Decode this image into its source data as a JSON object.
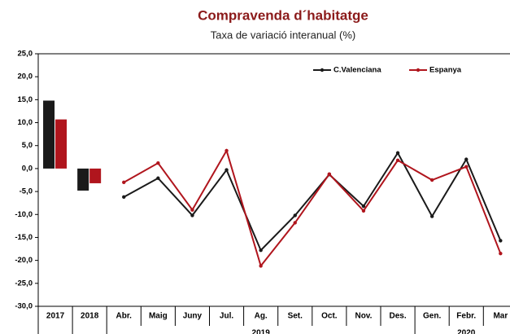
{
  "chart_data": {
    "type": "bar_line",
    "title": "Compravenda d´habitatge",
    "subtitle": "Taxa de variació interanual (%)",
    "bar_categories": [
      "2017",
      "2018"
    ],
    "category_groups": [
      {
        "label": "2019",
        "categories": [
          "Abr.",
          "Maig",
          "Juny",
          "Jul.",
          "Ag.",
          "Set.",
          "Oct.",
          "Nov.",
          "Des."
        ]
      },
      {
        "label": "2020",
        "categories": [
          "Gen.",
          "Febr.",
          "Mar"
        ]
      }
    ],
    "series": [
      {
        "name": "C.Valenciana",
        "color": "#1a1a1a",
        "bar_values": [
          14.8,
          -4.8
        ],
        "values": [
          -6.2,
          -2.1,
          -10.2,
          -0.3,
          -17.8,
          -10.2,
          -1.3,
          -8.2,
          3.4,
          -10.4,
          2.0,
          -15.7
        ]
      },
      {
        "name": "Espanya",
        "color": "#b0151d",
        "bar_values": [
          10.7,
          -3.2
        ],
        "values": [
          -3.0,
          1.2,
          -9.0,
          3.9,
          -21.2,
          -11.8,
          -1.2,
          -9.2,
          1.8,
          -2.5,
          0.4,
          -18.5
        ]
      }
    ],
    "ylim": [
      -30,
      25
    ],
    "yticks": [
      {
        "value": -30,
        "label": "-30,0"
      },
      {
        "value": -25,
        "label": "-25,0"
      },
      {
        "value": -20,
        "label": "-20,0"
      },
      {
        "value": -15,
        "label": "-15,0"
      },
      {
        "value": -10,
        "label": "-10,0"
      },
      {
        "value": -5,
        "label": "-5,0"
      },
      {
        "value": 0,
        "label": "0,0"
      },
      {
        "value": 5,
        "label": "5,0"
      },
      {
        "value": 10,
        "label": "10,0"
      },
      {
        "value": 15,
        "label": "15,0"
      },
      {
        "value": 20,
        "label": "20,0"
      },
      {
        "value": 25,
        "label": "25,0"
      }
    ],
    "legend": "upper right"
  }
}
